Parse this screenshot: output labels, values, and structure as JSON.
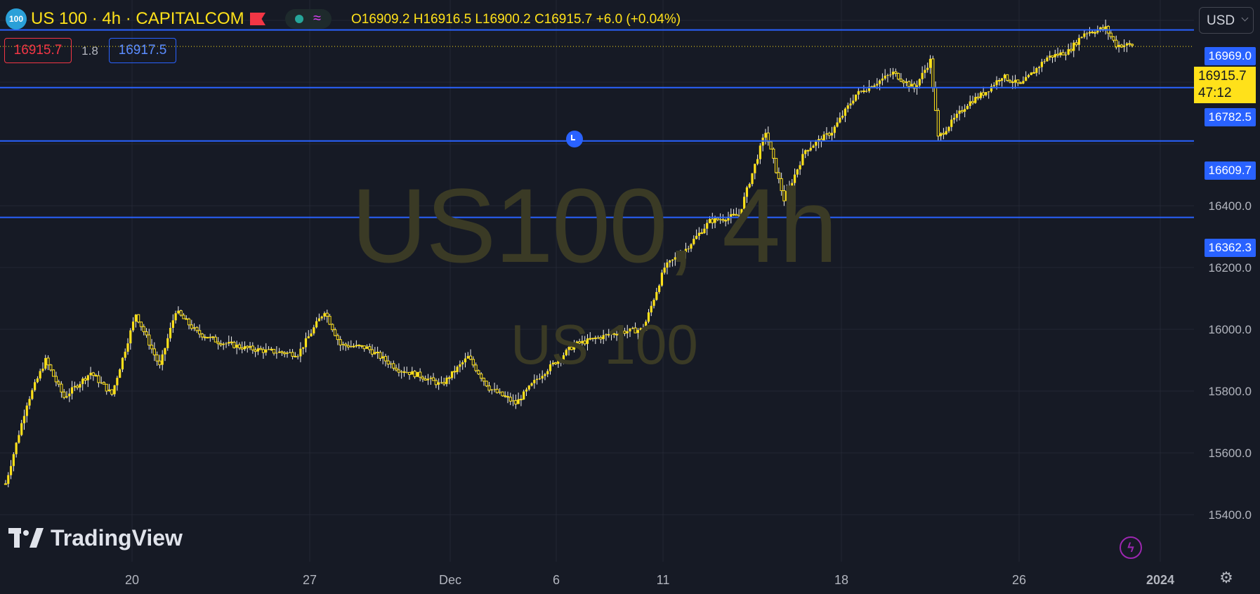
{
  "header": {
    "symbol_badge": "100",
    "title": "US 100 · 4h · CAPITALCOM",
    "ohlc": "O16909.2  H16916.5  L16900.2  C16915.7  +6.0 (+0.04%)",
    "currency": "USD",
    "bid": "16915.7",
    "spread": "1.8",
    "ask": "16917.5"
  },
  "watermark": {
    "line1": "US100, 4h",
    "line2": "US 100"
  },
  "brand": "TradingView",
  "icons": {
    "alarm": "alarm-clock-icon",
    "lightning": "lightning-icon",
    "settings": "gear-icon",
    "flag": "flag-icon",
    "market_status": "dot-icon",
    "wave": "approx-icon"
  },
  "colors": {
    "background": "#161a25",
    "candle": "#ffe11a",
    "hline": "#2962ff",
    "bid": "#f23645"
  },
  "price_axis": {
    "ticks": [
      "16400.0",
      "16200.0",
      "16000.0",
      "15800.0",
      "15600.0",
      "15400.0"
    ]
  },
  "time_axis": {
    "labels": [
      "20",
      "27",
      "Dec",
      "6",
      "11",
      "18",
      "26",
      "2024"
    ]
  },
  "horizontal_lines": [
    "16969.0",
    "16782.5",
    "16609.7",
    "16362.3"
  ],
  "last_price": {
    "value": "16915.7",
    "countdown": "47:12"
  }
}
